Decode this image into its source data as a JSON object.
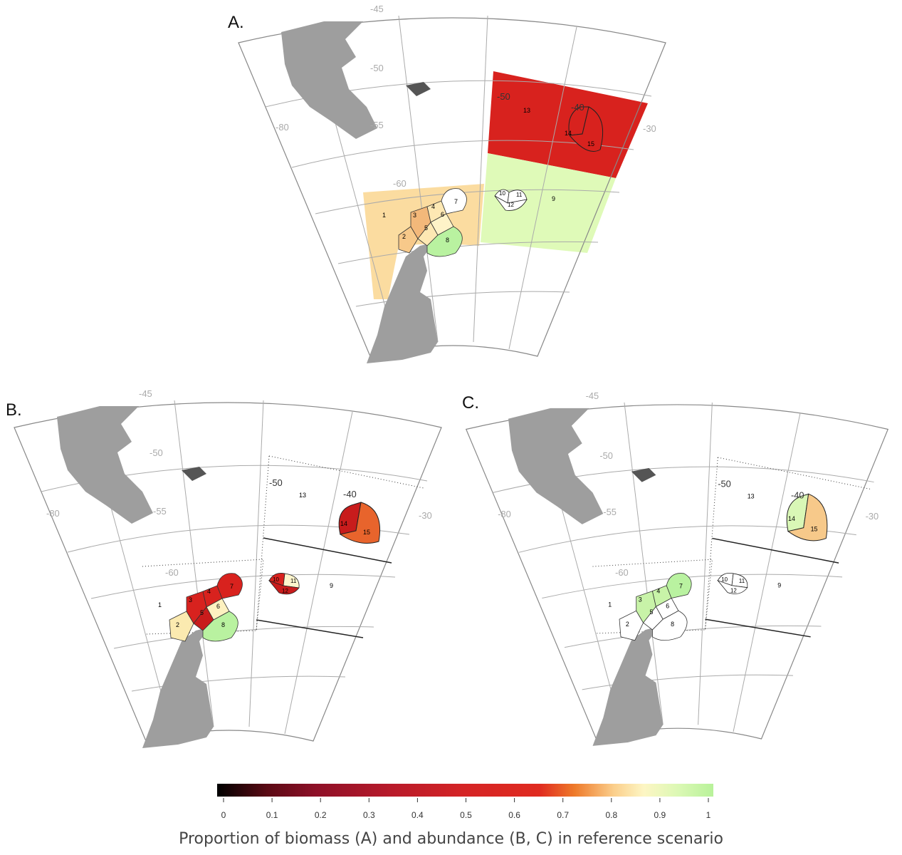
{
  "panels": [
    {
      "letter": "A.",
      "lat_labels": [
        "-50",
        "-55",
        "-60"
      ],
      "lon_labels": [
        "-45",
        "-80",
        "-50",
        "-40",
        "-30"
      ],
      "region_labels": [
        "1",
        "2",
        "3",
        "4",
        "5",
        "6",
        "7",
        "8",
        "9",
        "10",
        "11",
        "12",
        "13",
        "14",
        "15"
      ],
      "fills": {
        "west_block": "#fbdca0",
        "r2": "#f7c98a",
        "r3": "#f3b87a",
        "r4": "#fde8b3",
        "r5": "#fde8b3",
        "r6": "#fef3c8",
        "r7": "#ffffff",
        "r8": "#b9f2a0",
        "r9": "#dffab8",
        "r10": "#ffffff",
        "r11": "#ffffff",
        "r12": "#ffffff",
        "r13": "#d8221e",
        "r14": "#d8221e",
        "r15": "#d8221e"
      }
    },
    {
      "letter": "B.",
      "lat_labels": [
        "-50",
        "-55",
        "-60"
      ],
      "lon_labels": [
        "-45",
        "-80",
        "-50",
        "-40",
        "-30"
      ],
      "region_labels": [
        "1",
        "2",
        "3",
        "4",
        "5",
        "6",
        "7",
        "8",
        "9",
        "10",
        "11",
        "12",
        "13",
        "14",
        "15"
      ],
      "fills": {
        "west_block": "none",
        "r2": "#fbeab0",
        "r3": "#d8221e",
        "r4": "#d8221e",
        "r5": "#c81c1c",
        "r6": "#fdf1c0",
        "r7": "#d8221e",
        "r8": "#b9f2a0",
        "r9": "none",
        "r10": "#d8221e",
        "r11": "#fdf5cc",
        "r12": "#c81c1c",
        "r13": "none",
        "r14": "#c81c1c",
        "r15": "#e8642c"
      }
    },
    {
      "letter": "C.",
      "lat_labels": [
        "-50",
        "-55",
        "-60"
      ],
      "lon_labels": [
        "-45",
        "-80",
        "-50",
        "-40",
        "-30"
      ],
      "region_labels": [
        "1",
        "2",
        "3",
        "4",
        "5",
        "6",
        "7",
        "8",
        "9",
        "10",
        "11",
        "12",
        "13",
        "14",
        "15"
      ],
      "fills": {
        "west_block": "none",
        "r2": "#ffffff",
        "r3": "#c8f3a8",
        "r4": "#c8f3a8",
        "r5": "#ffffff",
        "r6": "#ffffff",
        "r7": "#b9f2a0",
        "r8": "#ffffff",
        "r9": "none",
        "r10": "#ffffff",
        "r11": "#ffffff",
        "r12": "#ffffff",
        "r13": "none",
        "r14": "#d9f7b6",
        "r15": "#f7c98a"
      }
    }
  ],
  "colorbar": {
    "ticks": [
      "0",
      "0.1",
      "0.2",
      "0.3",
      "0.4",
      "0.5",
      "0.6",
      "0.7",
      "0.8",
      "0.9",
      "1"
    ],
    "title": "Proportion of biomass (A) and abundance (B, C) in reference scenario",
    "stops": [
      "#000000",
      "#5a0a14",
      "#8e1028",
      "#b81a2a",
      "#d52425",
      "#e02b20",
      "#ee7a2a",
      "#fbcf8c",
      "#fdf6c4",
      "#dbf8b4",
      "#b8f29a"
    ]
  }
}
